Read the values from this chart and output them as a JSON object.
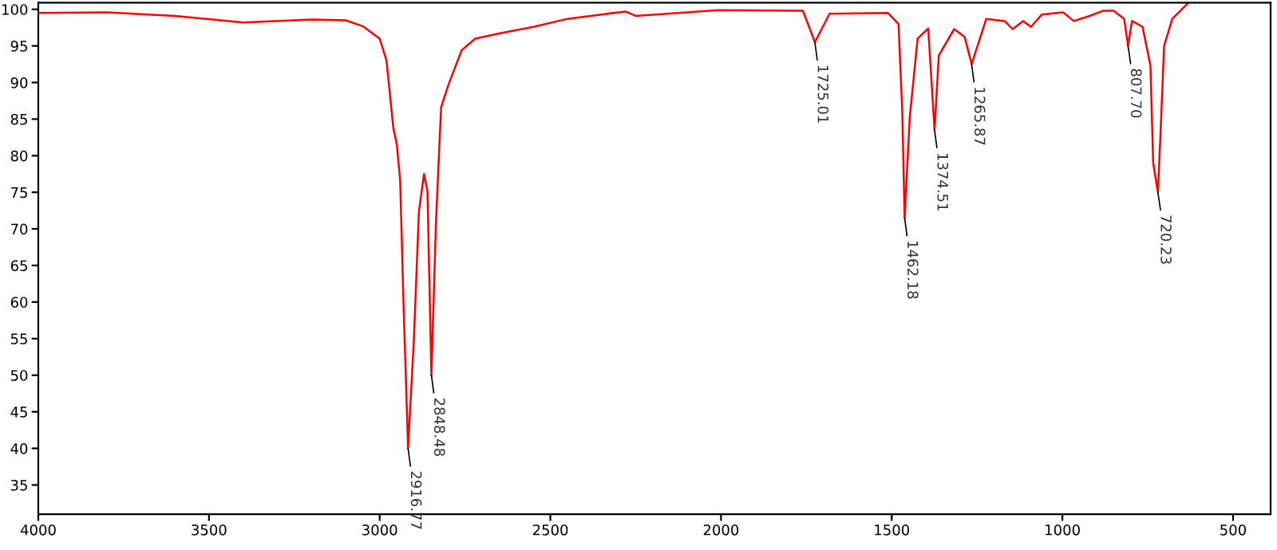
{
  "chart_data": {
    "type": "line",
    "xlim": [
      4000,
      390
    ],
    "xticks": [
      4000,
      3500,
      3000,
      2500,
      2000,
      1500,
      1000,
      500
    ],
    "ylim": [
      31,
      100.9
    ],
    "yticks": [
      35,
      40,
      45,
      50,
      55,
      60,
      65,
      70,
      75,
      80,
      85,
      90,
      95,
      100
    ],
    "grid": false,
    "legend": false,
    "marker": "none",
    "line_style": "solid",
    "series": [
      {
        "color": "#ff0000",
        "x": [
          4000,
          3800,
          3600,
          3400,
          3200,
          3100,
          3050,
          3000,
          2980,
          2960,
          2950,
          2940,
          2930,
          2916.77,
          2900,
          2885,
          2870,
          2860,
          2848.48,
          2835,
          2820,
          2800,
          2760,
          2720,
          2650,
          2550,
          2450,
          2350,
          2280,
          2250,
          2008,
          1760,
          1725.01,
          1682,
          1511,
          1480,
          1469,
          1462.18,
          1447,
          1424,
          1393,
          1374.51,
          1362,
          1317,
          1286,
          1265.87,
          1223,
          1169,
          1146,
          1115,
          1092,
          1060,
          998,
          967,
          920,
          881,
          850,
          819,
          807.7,
          796,
          765,
          742,
          734,
          720.23,
          713,
          702,
          678,
          633
        ],
        "values": [
          99.5,
          99.6,
          99.1,
          98.2,
          98.6,
          98.5,
          97.7,
          96,
          93,
          83.8,
          81.6,
          76.7,
          59.6,
          40,
          54.6,
          72.4,
          77.5,
          75.2,
          50,
          71,
          86.6,
          89.5,
          94.4,
          96,
          96.7,
          97.6,
          98.7,
          99.3,
          99.7,
          99.1,
          99.9,
          99.8,
          95.5,
          99.4,
          99.5,
          98,
          86,
          71.5,
          85.3,
          96,
          97.4,
          83.5,
          93.7,
          97.3,
          96.2,
          92.5,
          98.7,
          98.4,
          97.3,
          98.4,
          97.6,
          99.3,
          99.6,
          98.4,
          99.1,
          99.8,
          99.8,
          98.7,
          95,
          98.4,
          97.6,
          92.3,
          79,
          75,
          82.5,
          95,
          98.7,
          100.8
        ]
      }
    ],
    "annotations": [
      {
        "text": "2916.77",
        "x": 2916.77,
        "y": 40
      },
      {
        "text": "2848.48",
        "x": 2848.48,
        "y": 50
      },
      {
        "text": "1725.01",
        "x": 1725.01,
        "y": 95.5
      },
      {
        "text": "1462.18",
        "x": 1462.18,
        "y": 71.5
      },
      {
        "text": "1374.51",
        "x": 1374.51,
        "y": 83.5
      },
      {
        "text": "1265.87",
        "x": 1265.87,
        "y": 92.5
      },
      {
        "text": "807.70",
        "x": 807.7,
        "y": 95
      },
      {
        "text": "720.23",
        "x": 720.23,
        "y": 75
      }
    ]
  }
}
